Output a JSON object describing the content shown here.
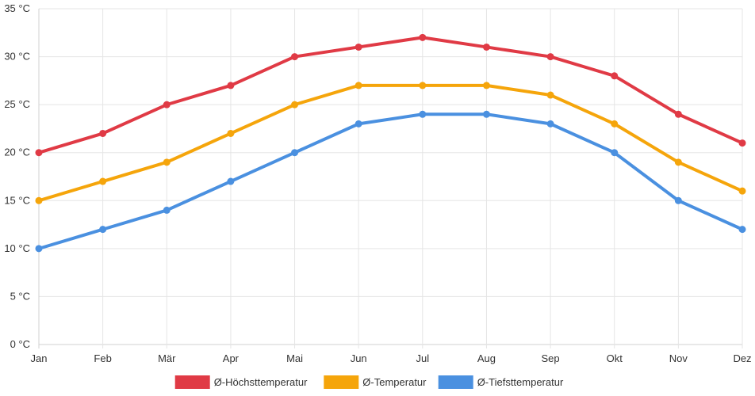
{
  "chart_data": {
    "type": "line",
    "categories": [
      "Jan",
      "Feb",
      "Mär",
      "Apr",
      "Mai",
      "Jun",
      "Jul",
      "Aug",
      "Sep",
      "Okt",
      "Nov",
      "Dez"
    ],
    "series": [
      {
        "name": "Ø-Höchsttemperatur",
        "color": "#e03a45",
        "values": [
          20,
          22,
          25,
          27,
          30,
          31,
          32,
          31,
          30,
          28,
          24,
          21
        ]
      },
      {
        "name": "Ø-Temperatur",
        "color": "#f5a50b",
        "values": [
          15,
          17,
          19,
          22,
          25,
          27,
          27,
          27,
          26,
          23,
          19,
          16
        ]
      },
      {
        "name": "Ø-Tiefsttemperatur",
        "color": "#4a90e0",
        "values": [
          10,
          12,
          14,
          17,
          20,
          23,
          24,
          24,
          23,
          20,
          15,
          12
        ]
      }
    ],
    "y_ticks": [
      "0 °C",
      "5 °C",
      "10 °C",
      "15 °C",
      "20 °C",
      "25 °C",
      "30 °C",
      "35 °C"
    ],
    "ylim": [
      0,
      35
    ],
    "y_step": 5,
    "grid": true,
    "legend_position": "bottom",
    "title": "",
    "xlabel": "",
    "ylabel": ""
  }
}
